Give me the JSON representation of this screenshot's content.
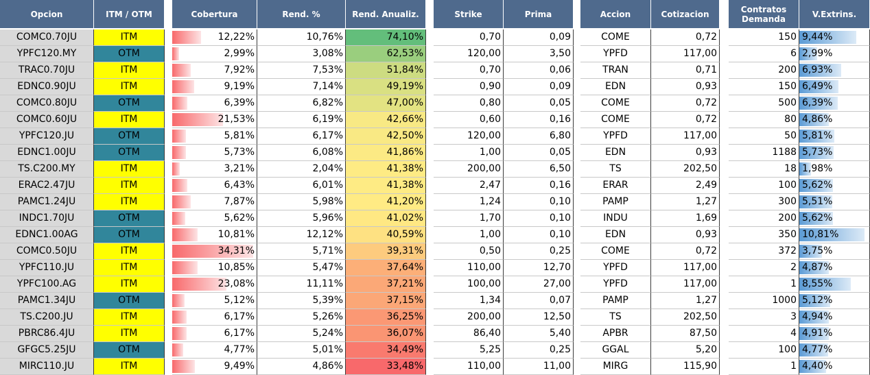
{
  "headers": {
    "opcion": "Opcion",
    "itm_otm": "ITM / OTM",
    "cobertura": "Cobertura",
    "rend": "Rend. %",
    "rend_anualiz": "Rend. Anualiz.",
    "strike": "Strike",
    "prima": "Prima",
    "accion": "Accion",
    "cotizacion": "Cotizacion",
    "contratos": "Contratos Demanda",
    "vextrins": "V.Extrins."
  },
  "colors": {
    "header_bg": "#4f6a8d",
    "itm": "#ffff00",
    "otm": "#31869b",
    "opcion_bg": "#d9d9d9",
    "rend_high": "#63be7b",
    "rend_mid": "#ffeb84",
    "rend_low": "#f8696b"
  },
  "rows": [
    {
      "opcion": "COMC0.70JU",
      "status": "ITM",
      "cobertura": "12,22%",
      "rend": "10,76%",
      "rend_anualiz": "74,10%",
      "strike": "0,70",
      "prima": "0,09",
      "accion": "COME",
      "cotizacion": "0,72",
      "contratos": "150",
      "vextrins": "9,44%"
    },
    {
      "opcion": "YPFC120.MY",
      "status": "OTM",
      "cobertura": "2,99%",
      "rend": "3,08%",
      "rend_anualiz": "62,53%",
      "strike": "120,00",
      "prima": "3,50",
      "accion": "YPFD",
      "cotizacion": "117,00",
      "contratos": "6",
      "vextrins": "2,99%"
    },
    {
      "opcion": "TRAC0.70JU",
      "status": "ITM",
      "cobertura": "7,92%",
      "rend": "7,53%",
      "rend_anualiz": "51,84%",
      "strike": "0,70",
      "prima": "0,06",
      "accion": "TRAN",
      "cotizacion": "0,71",
      "contratos": "200",
      "vextrins": "6,93%"
    },
    {
      "opcion": "EDNC0.90JU",
      "status": "ITM",
      "cobertura": "9,19%",
      "rend": "7,14%",
      "rend_anualiz": "49,19%",
      "strike": "0,90",
      "prima": "0,09",
      "accion": "EDN",
      "cotizacion": "0,93",
      "contratos": "150",
      "vextrins": "6,49%"
    },
    {
      "opcion": "COMC0.80JU",
      "status": "OTM",
      "cobertura": "6,39%",
      "rend": "6,82%",
      "rend_anualiz": "47,00%",
      "strike": "0,80",
      "prima": "0,05",
      "accion": "COME",
      "cotizacion": "0,72",
      "contratos": "500",
      "vextrins": "6,39%"
    },
    {
      "opcion": "COMC0.60JU",
      "status": "ITM",
      "cobertura": "21,53%",
      "rend": "6,19%",
      "rend_anualiz": "42,66%",
      "strike": "0,60",
      "prima": "0,16",
      "accion": "COME",
      "cotizacion": "0,72",
      "contratos": "80",
      "vextrins": "4,86%"
    },
    {
      "opcion": "YPFC120.JU",
      "status": "OTM",
      "cobertura": "5,81%",
      "rend": "6,17%",
      "rend_anualiz": "42,50%",
      "strike": "120,00",
      "prima": "6,80",
      "accion": "YPFD",
      "cotizacion": "117,00",
      "contratos": "50",
      "vextrins": "5,81%"
    },
    {
      "opcion": "EDNC1.00JU",
      "status": "OTM",
      "cobertura": "5,73%",
      "rend": "6,08%",
      "rend_anualiz": "41,86%",
      "strike": "1,00",
      "prima": "0,05",
      "accion": "EDN",
      "cotizacion": "0,93",
      "contratos": "1188",
      "vextrins": "5,73%"
    },
    {
      "opcion": "TS.C200.MY",
      "status": "ITM",
      "cobertura": "3,21%",
      "rend": "2,04%",
      "rend_anualiz": "41,38%",
      "strike": "200,00",
      "prima": "6,50",
      "accion": "TS",
      "cotizacion": "202,50",
      "contratos": "18",
      "vextrins": "1,98%"
    },
    {
      "opcion": "ERAC2.47JU",
      "status": "ITM",
      "cobertura": "6,43%",
      "rend": "6,01%",
      "rend_anualiz": "41,38%",
      "strike": "2,47",
      "prima": "0,16",
      "accion": "ERAR",
      "cotizacion": "2,49",
      "contratos": "100",
      "vextrins": "5,62%"
    },
    {
      "opcion": "PAMC1.24JU",
      "status": "ITM",
      "cobertura": "7,87%",
      "rend": "5,98%",
      "rend_anualiz": "41,20%",
      "strike": "1,24",
      "prima": "0,10",
      "accion": "PAMP",
      "cotizacion": "1,27",
      "contratos": "300",
      "vextrins": "5,51%"
    },
    {
      "opcion": "INDC1.70JU",
      "status": "OTM",
      "cobertura": "5,62%",
      "rend": "5,96%",
      "rend_anualiz": "41,02%",
      "strike": "1,70",
      "prima": "0,10",
      "accion": "INDU",
      "cotizacion": "1,69",
      "contratos": "200",
      "vextrins": "5,62%"
    },
    {
      "opcion": "EDNC1.00AG",
      "status": "OTM",
      "cobertura": "10,81%",
      "rend": "12,12%",
      "rend_anualiz": "40,59%",
      "strike": "1,00",
      "prima": "0,10",
      "accion": "EDN",
      "cotizacion": "0,93",
      "contratos": "350",
      "vextrins": "10,81%"
    },
    {
      "opcion": "COMC0.50JU",
      "status": "ITM",
      "cobertura": "34,31%",
      "rend": "5,71%",
      "rend_anualiz": "39,31%",
      "strike": "0,50",
      "prima": "0,25",
      "accion": "COME",
      "cotizacion": "0,72",
      "contratos": "372",
      "vextrins": "3,75%"
    },
    {
      "opcion": "YPFC110.JU",
      "status": "ITM",
      "cobertura": "10,85%",
      "rend": "5,47%",
      "rend_anualiz": "37,64%",
      "strike": "110,00",
      "prima": "12,70",
      "accion": "YPFD",
      "cotizacion": "117,00",
      "contratos": "2",
      "vextrins": "4,87%"
    },
    {
      "opcion": "YPFC100.AG",
      "status": "ITM",
      "cobertura": "23,08%",
      "rend": "11,11%",
      "rend_anualiz": "37,21%",
      "strike": "100,00",
      "prima": "27,00",
      "accion": "YPFD",
      "cotizacion": "117,00",
      "contratos": "1",
      "vextrins": "8,55%"
    },
    {
      "opcion": "PAMC1.34JU",
      "status": "OTM",
      "cobertura": "5,12%",
      "rend": "5,39%",
      "rend_anualiz": "37,15%",
      "strike": "1,34",
      "prima": "0,07",
      "accion": "PAMP",
      "cotizacion": "1,27",
      "contratos": "1000",
      "vextrins": "5,12%"
    },
    {
      "opcion": "TS.C200.JU",
      "status": "ITM",
      "cobertura": "6,17%",
      "rend": "5,26%",
      "rend_anualiz": "36,25%",
      "strike": "200,00",
      "prima": "12,50",
      "accion": "TS",
      "cotizacion": "202,50",
      "contratos": "3",
      "vextrins": "4,94%"
    },
    {
      "opcion": "PBRC86.4JU",
      "status": "ITM",
      "cobertura": "6,17%",
      "rend": "5,24%",
      "rend_anualiz": "36,07%",
      "strike": "86,40",
      "prima": "5,40",
      "accion": "APBR",
      "cotizacion": "87,50",
      "contratos": "4",
      "vextrins": "4,91%"
    },
    {
      "opcion": "GFGC5.25JU",
      "status": "OTM",
      "cobertura": "4,77%",
      "rend": "5,01%",
      "rend_anualiz": "34,49%",
      "strike": "5,25",
      "prima": "0,25",
      "accion": "GGAL",
      "cotizacion": "5,20",
      "contratos": "100",
      "vextrins": "4,77%"
    },
    {
      "opcion": "MIRC110.JU",
      "status": "ITM",
      "cobertura": "9,49%",
      "rend": "4,86%",
      "rend_anualiz": "33,48%",
      "strike": "110,00",
      "prima": "11,00",
      "accion": "MIRG",
      "cotizacion": "115,90",
      "contratos": "1",
      "vextrins": "4,40%"
    }
  ]
}
